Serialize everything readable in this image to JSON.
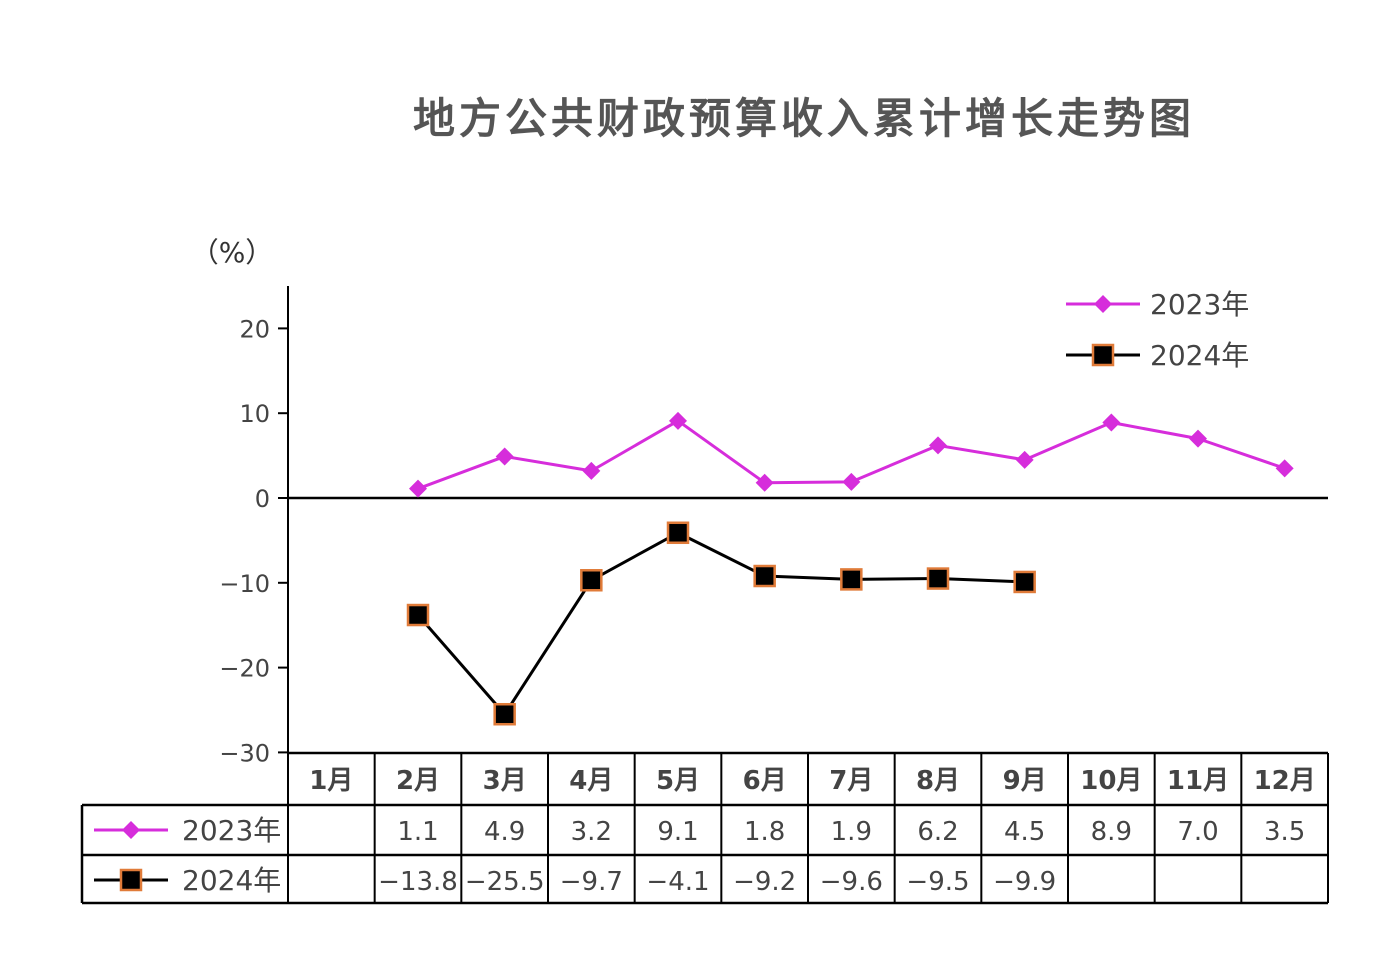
{
  "chart_data": {
    "type": "line",
    "title": "地方公共财政预算收入累计增长走势图",
    "ylabel": "（%）",
    "ylim": [
      -30,
      25
    ],
    "yticks": [
      -30,
      -20,
      -10,
      0,
      10,
      20
    ],
    "categories": [
      "1月",
      "2月",
      "3月",
      "4月",
      "5月",
      "6月",
      "7月",
      "8月",
      "9月",
      "10月",
      "11月",
      "12月"
    ],
    "series": [
      {
        "name": "2023年",
        "color": "#d62ddb",
        "marker": "diamond",
        "values": [
          null,
          1.1,
          4.9,
          3.2,
          9.1,
          1.8,
          1.9,
          6.2,
          4.5,
          8.9,
          7.0,
          3.5
        ],
        "labels": [
          "",
          "1.1",
          "4.9",
          "3.2",
          "9.1",
          "1.8",
          "1.9",
          "6.2",
          "4.5",
          "8.9",
          "7.0",
          "3.5"
        ]
      },
      {
        "name": "2024年",
        "color": "#000000",
        "marker_edge": "#e07b39",
        "marker": "square",
        "values": [
          null,
          -13.8,
          -25.5,
          -9.7,
          -4.1,
          -9.2,
          -9.6,
          -9.5,
          -9.9,
          null,
          null,
          null
        ],
        "labels": [
          "",
          "-13.8",
          "-25.5",
          "-9.7",
          "-4.1",
          "-9.2",
          "-9.6",
          "-9.5",
          "-9.9",
          "",
          "",
          ""
        ]
      }
    ],
    "legend_position": "top-right",
    "grid": false
  }
}
